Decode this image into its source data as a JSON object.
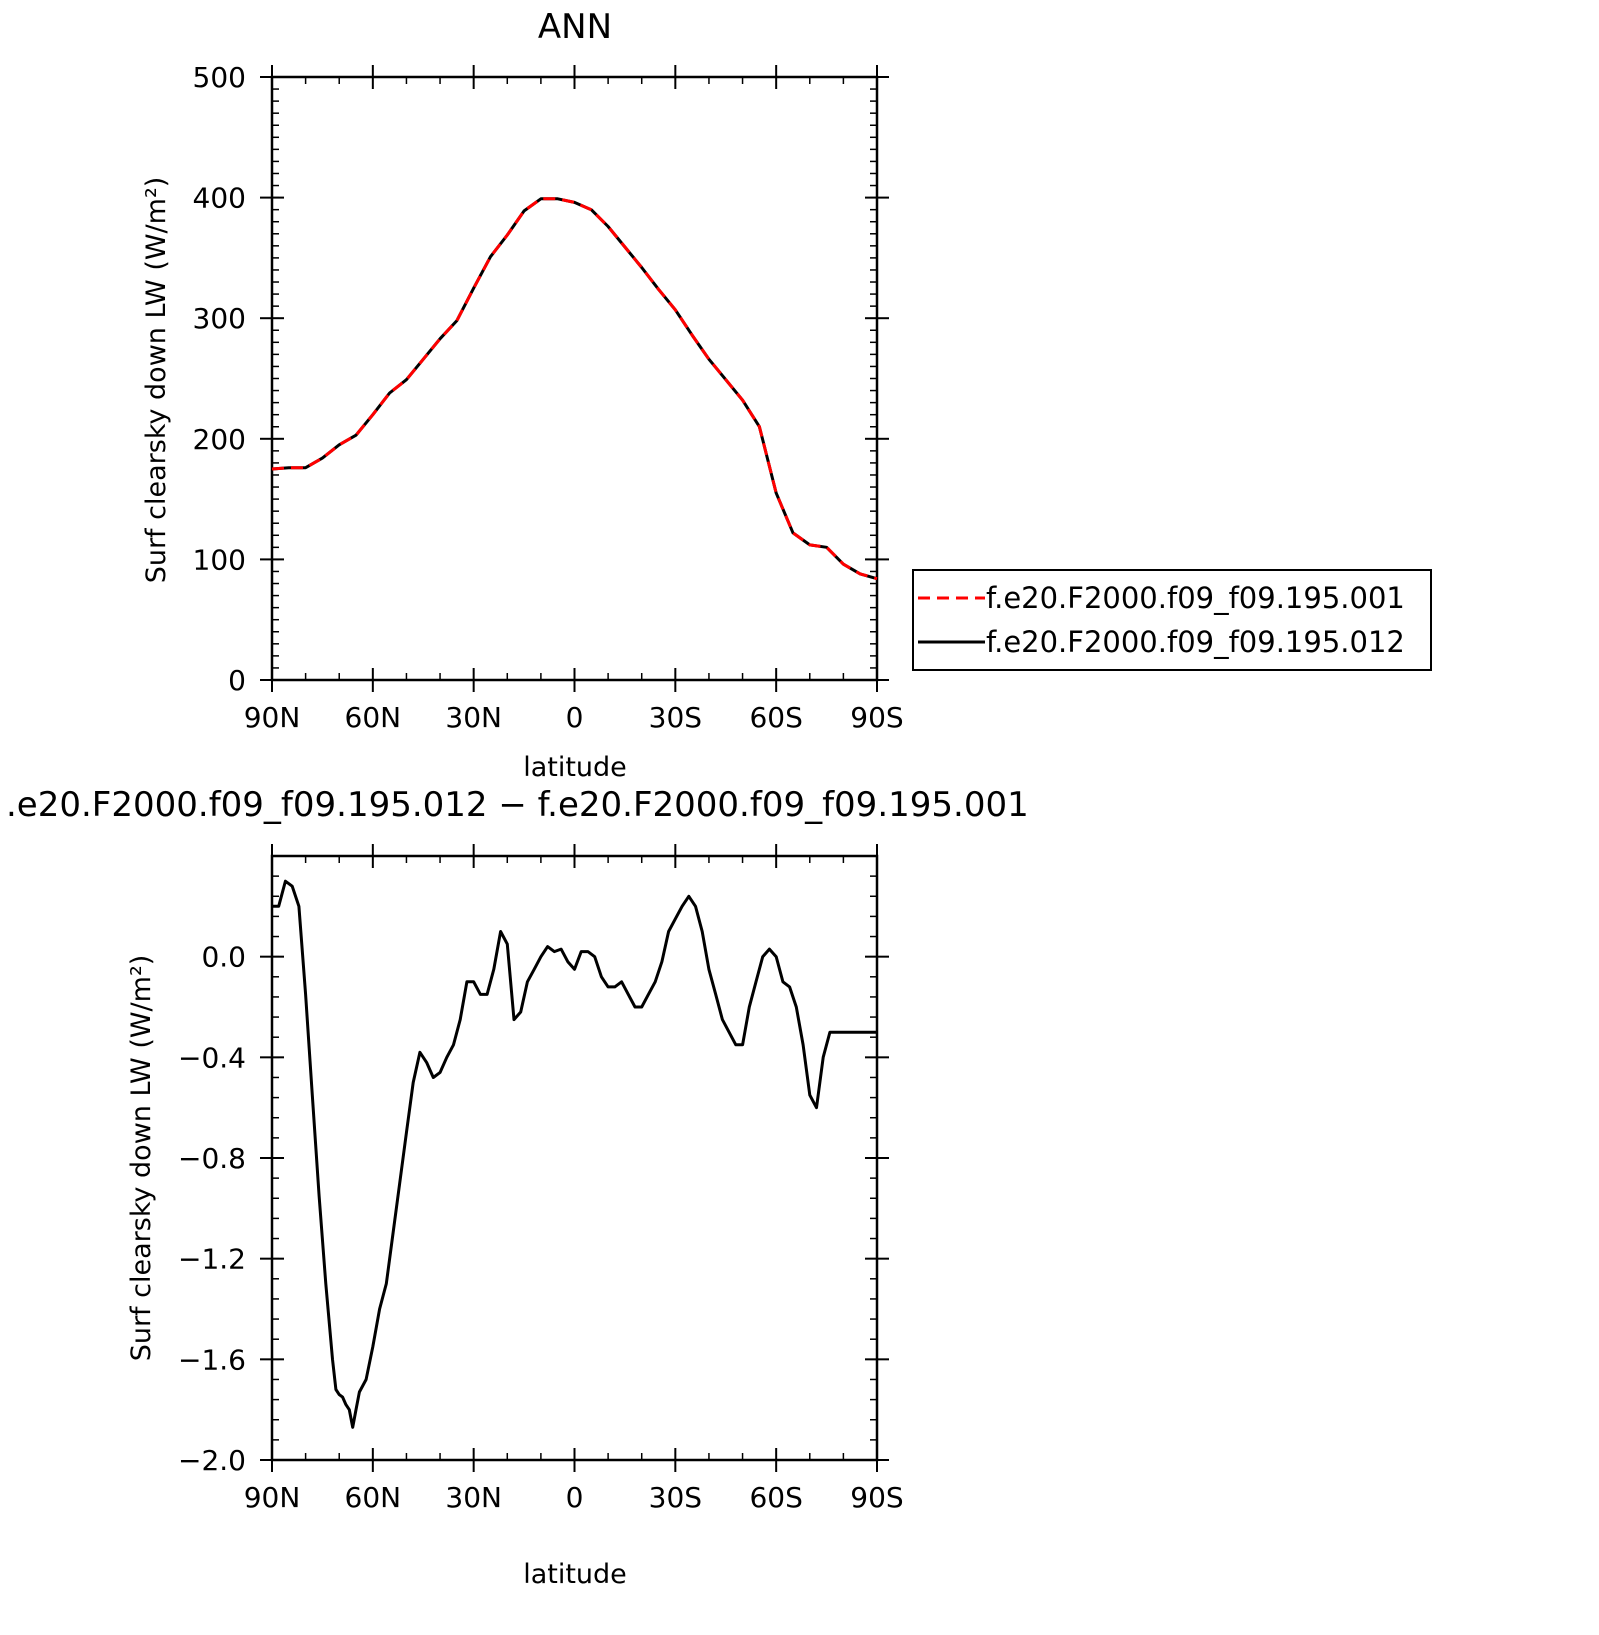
{
  "figure": {
    "top_title": "ANN",
    "bottom_title": ".e20.F2000.f09_f09.195.012 − f.e20.F2000.f09_f09.195.001"
  },
  "legend": {
    "items": [
      {
        "label": "f.e20.F2000.f09_f09.195.001",
        "color": "#ff0000",
        "dash": "dashed"
      },
      {
        "label": "f.e20.F2000.f09_f09.195.012",
        "color": "#000000",
        "dash": "solid"
      }
    ]
  },
  "chart_data": [
    {
      "type": "line",
      "title": "ANN",
      "xlabel": "latitude",
      "ylabel": "Surf clearsky down LW (W/m²)",
      "xlim": [
        90,
        -90
      ],
      "ylim": [
        0,
        500
      ],
      "x_ticks": [
        90,
        60,
        30,
        0,
        -30,
        -60,
        -90
      ],
      "x_tick_labels": [
        "90N",
        "60N",
        "30N",
        "0",
        "30S",
        "60S",
        "90S"
      ],
      "y_ticks": [
        0,
        100,
        200,
        300,
        400,
        500
      ],
      "y_tick_labels": [
        "0",
        "100",
        "200",
        "300",
        "400",
        "500"
      ],
      "legend_position": "right",
      "series": [
        {
          "name": "f.e20.F2000.f09_f09.195.001",
          "color": "#ff0000",
          "dash": "dashed",
          "x": [
            90,
            85,
            80,
            75,
            70,
            65,
            60,
            55,
            50,
            45,
            40,
            35,
            30,
            25,
            20,
            15,
            10,
            5,
            0,
            -5,
            -10,
            -15,
            -20,
            -25,
            -30,
            -35,
            -40,
            -45,
            -50,
            -55,
            -60,
            -65,
            -70,
            -75,
            -80,
            -85,
            -90
          ],
          "y": [
            175,
            176,
            176,
            184,
            195,
            203,
            220,
            238,
            249,
            266,
            283,
            298,
            325,
            351,
            369,
            389,
            399,
            399,
            396,
            390,
            376,
            359,
            342,
            324,
            307,
            286,
            266,
            249,
            232,
            210,
            155,
            122,
            112,
            110,
            96,
            88,
            84
          ]
        },
        {
          "name": "f.e20.F2000.f09_f09.195.012",
          "color": "#000000",
          "dash": "solid",
          "x": [
            90,
            85,
            80,
            75,
            70,
            65,
            60,
            55,
            50,
            45,
            40,
            35,
            30,
            25,
            20,
            15,
            10,
            5,
            0,
            -5,
            -10,
            -15,
            -20,
            -25,
            -30,
            -35,
            -40,
            -45,
            -50,
            -55,
            -60,
            -65,
            -70,
            -75,
            -80,
            -85,
            -90
          ],
          "y": [
            175,
            176,
            176,
            184,
            195,
            203,
            220,
            238,
            249,
            266,
            283,
            298,
            325,
            351,
            369,
            389,
            399,
            399,
            396,
            390,
            376,
            359,
            342,
            324,
            307,
            286,
            266,
            249,
            232,
            210,
            155,
            122,
            112,
            110,
            96,
            88,
            84
          ]
        }
      ]
    },
    {
      "type": "line",
      "title": ".e20.F2000.f09_f09.195.012 − f.e20.F2000.f09_f09.195.001",
      "xlabel": "latitude",
      "ylabel": "Surf clearsky down LW (W/m²)",
      "xlim": [
        90,
        -90
      ],
      "ylim": [
        -2.0,
        0.4
      ],
      "x_ticks": [
        90,
        60,
        30,
        0,
        -30,
        -60,
        -90
      ],
      "x_tick_labels": [
        "90N",
        "60N",
        "30N",
        "0",
        "30S",
        "60S",
        "90S"
      ],
      "y_ticks": [
        -2.0,
        -1.6,
        -1.2,
        -0.8,
        -0.4,
        0.0
      ],
      "y_tick_labels": [
        "−2.0",
        "−1.6",
        "−1.2",
        "−0.8",
        "−0.4",
        "0.0"
      ],
      "series": [
        {
          "color": "#000000",
          "dash": "solid",
          "x": [
            90,
            88,
            86,
            84,
            82,
            80,
            78,
            76,
            74,
            72,
            71,
            70,
            69,
            68,
            67,
            66,
            65,
            64,
            62,
            60,
            58,
            56,
            54,
            52,
            50,
            48,
            46,
            44,
            42,
            40,
            38,
            36,
            34,
            32,
            30,
            28,
            26,
            24,
            22,
            20,
            18,
            16,
            14,
            12,
            10,
            8,
            6,
            4,
            2,
            0,
            -2,
            -4,
            -6,
            -8,
            -10,
            -12,
            -14,
            -16,
            -18,
            -20,
            -22,
            -24,
            -26,
            -28,
            -30,
            -32,
            -34,
            -36,
            -38,
            -40,
            -42,
            -44,
            -46,
            -48,
            -50,
            -52,
            -54,
            -56,
            -58,
            -60,
            -62,
            -64,
            -66,
            -68,
            -70,
            -72,
            -74,
            -76,
            -78,
            -80,
            -82,
            -84,
            -86,
            -88,
            -90
          ],
          "y": [
            0.2,
            0.2,
            0.3,
            0.28,
            0.2,
            -0.15,
            -0.55,
            -0.95,
            -1.3,
            -1.6,
            -1.72,
            -1.74,
            -1.75,
            -1.78,
            -1.8,
            -1.87,
            -1.8,
            -1.73,
            -1.68,
            -1.55,
            -1.4,
            -1.3,
            -1.1,
            -0.9,
            -0.7,
            -0.5,
            -0.38,
            -0.42,
            -0.48,
            -0.46,
            -0.4,
            -0.35,
            -0.25,
            -0.1,
            -0.1,
            -0.15,
            -0.15,
            -0.05,
            0.1,
            0.05,
            -0.25,
            -0.22,
            -0.1,
            -0.05,
            0.0,
            0.04,
            0.02,
            0.03,
            -0.02,
            -0.05,
            0.02,
            0.02,
            0.0,
            -0.08,
            -0.12,
            -0.12,
            -0.1,
            -0.15,
            -0.2,
            -0.2,
            -0.15,
            -0.1,
            -0.02,
            0.1,
            0.15,
            0.2,
            0.24,
            0.2,
            0.1,
            -0.05,
            -0.15,
            -0.25,
            -0.3,
            -0.35,
            -0.35,
            -0.2,
            -0.1,
            0.0,
            0.03,
            0.0,
            -0.1,
            -0.12,
            -0.2,
            -0.35,
            -0.55,
            -0.6,
            -0.4,
            -0.3,
            -0.3,
            -0.3,
            -0.3,
            -0.3,
            -0.3,
            -0.3,
            -0.3
          ]
        }
      ]
    }
  ]
}
